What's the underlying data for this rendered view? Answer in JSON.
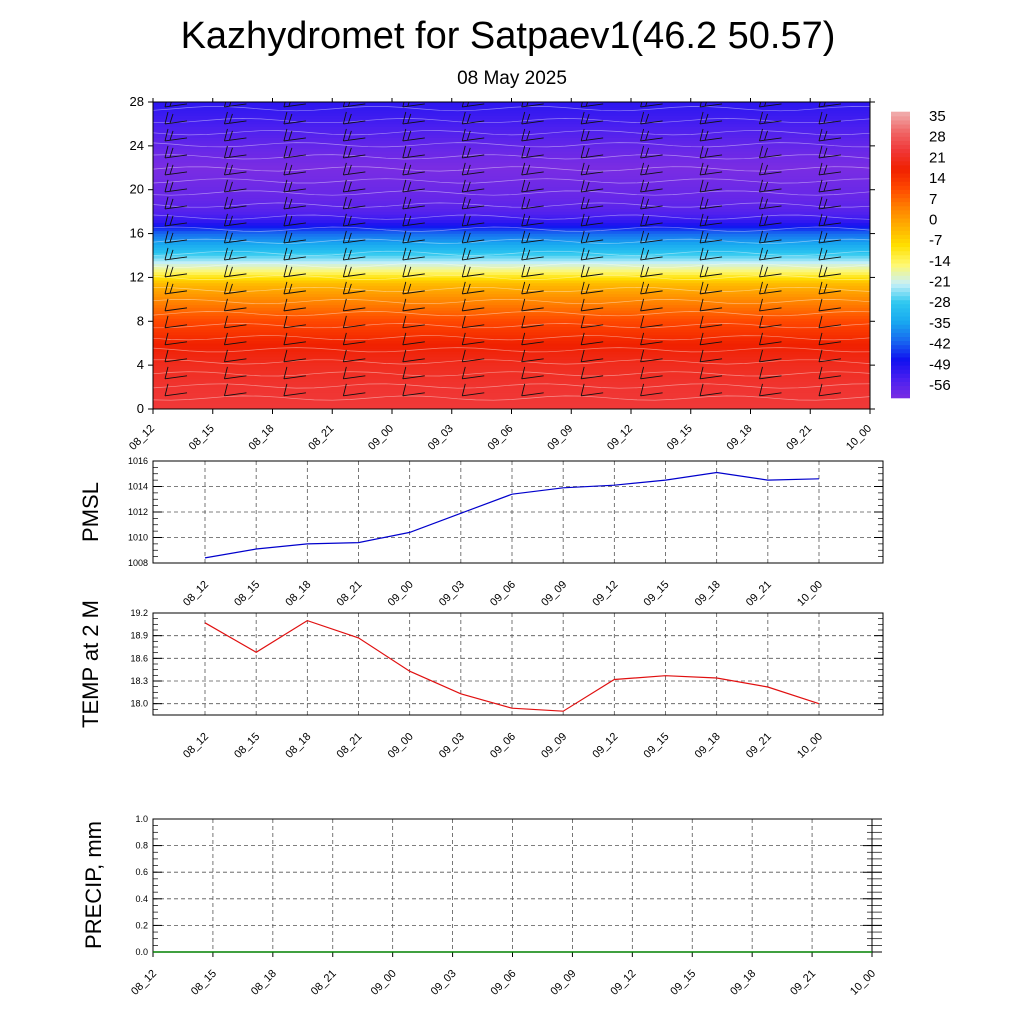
{
  "title": "Kazhydromet for Satpaev1(46.2 50.57)",
  "subtitle": "08 May 2025",
  "chart_data": [
    {
      "type": "heatmap",
      "name": "vertical-temperature-section",
      "x_ticks": [
        "08_12",
        "08_15",
        "08_18",
        "08_21",
        "09_00",
        "09_03",
        "09_06",
        "09_09",
        "09_12",
        "09_15",
        "09_18",
        "09_21",
        "10_00"
      ],
      "y_ticks": [
        0,
        4,
        8,
        12,
        16,
        20,
        24,
        28
      ],
      "ylim": [
        0,
        28
      ],
      "colorbar_ticks": [
        35,
        28,
        21,
        14,
        7,
        0,
        -7,
        -14,
        -21,
        -28,
        -35,
        -42,
        -49,
        -56
      ],
      "colorbar_range": [
        -60,
        38
      ],
      "colormap": [
        "#7a2de3",
        "#4a1ff0",
        "#1010f0",
        "#1868f0",
        "#18a8f0",
        "#2ec8f0",
        "#c8f0f8",
        "#fff870",
        "#ffe000",
        "#ffb000",
        "#ff8000",
        "#ff4800",
        "#f02000",
        "#f03838",
        "#f06868",
        "#f0b0b0"
      ],
      "temperature_profile": {
        "heights": [
          0,
          2,
          4,
          6,
          8,
          10,
          11.5,
          12.5,
          13.5,
          14.5,
          16,
          17,
          18,
          19,
          20,
          22,
          24,
          26,
          28
        ],
        "values": [
          25,
          24,
          22,
          18,
          12,
          4,
          -3,
          -14,
          -22,
          -30,
          -40,
          -50,
          -55,
          -57,
          -58,
          -60,
          -57,
          -53,
          -50
        ]
      },
      "wind_barbs": true
    },
    {
      "type": "line",
      "name": "pmsl",
      "ylabel": "PMSL",
      "ylim": [
        1008,
        1016
      ],
      "y_ticks": [
        1008,
        1010,
        1012,
        1014,
        1016
      ],
      "categories": [
        "08_12",
        "08_15",
        "08_18",
        "08_21",
        "09_00",
        "09_03",
        "09_06",
        "09_09",
        "09_12",
        "09_15",
        "09_18",
        "09_21",
        "10_00"
      ],
      "series": [
        {
          "values": [
            1008.4,
            1009.1,
            1009.5,
            1009.6,
            1010.4,
            1011.9,
            1013.4,
            1013.9,
            1014.1,
            1014.5,
            1015.1,
            1014.5,
            1014.6
          ],
          "color": "#0000cc"
        }
      ],
      "grid": true
    },
    {
      "type": "line",
      "name": "temp-2m",
      "ylabel": "TEMP at 2 M",
      "ylim": [
        17.85,
        19.2
      ],
      "y_ticks": [
        18.0,
        18.3,
        18.6,
        18.9,
        19.2
      ],
      "categories": [
        "08_12",
        "08_15",
        "08_18",
        "08_21",
        "09_00",
        "09_03",
        "09_06",
        "09_09",
        "09_12",
        "09_15",
        "09_18",
        "09_21",
        "10_00"
      ],
      "series": [
        {
          "values": [
            19.07,
            18.68,
            19.1,
            18.87,
            18.43,
            18.13,
            17.94,
            17.9,
            18.32,
            18.37,
            18.34,
            18.22,
            18.0
          ],
          "color": "#e01010"
        }
      ],
      "grid": true
    },
    {
      "type": "line",
      "name": "precip",
      "ylabel": "PRECIP, mm",
      "ylim": [
        0,
        1
      ],
      "y_ticks": [
        0.0,
        0.2,
        0.4,
        0.6,
        0.8,
        1.0
      ],
      "categories": [
        "08_12",
        "08_15",
        "08_18",
        "08_21",
        "09_00",
        "09_03",
        "09_06",
        "09_09",
        "09_12",
        "09_15",
        "09_18",
        "09_21",
        "10_00"
      ],
      "series": [
        {
          "values": [
            0,
            0,
            0,
            0,
            0,
            0,
            0,
            0,
            0,
            0,
            0,
            0,
            0
          ],
          "color": "#008000"
        }
      ],
      "grid": true
    }
  ]
}
